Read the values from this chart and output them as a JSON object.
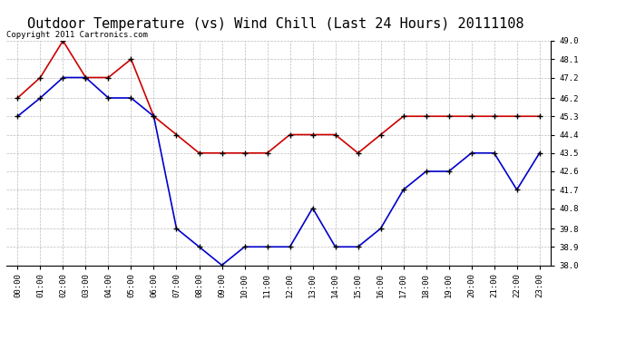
{
  "title": "Outdoor Temperature (vs) Wind Chill (Last 24 Hours) 20111108",
  "copyright_text": "Copyright 2011 Cartronics.com",
  "hours": [
    "00:00",
    "01:00",
    "02:00",
    "03:00",
    "04:00",
    "05:00",
    "06:00",
    "07:00",
    "08:00",
    "09:00",
    "10:00",
    "11:00",
    "12:00",
    "13:00",
    "14:00",
    "15:00",
    "16:00",
    "17:00",
    "18:00",
    "19:00",
    "20:00",
    "21:00",
    "22:00",
    "23:00"
  ],
  "red_line": [
    46.2,
    47.2,
    49.0,
    47.2,
    47.2,
    48.1,
    45.3,
    44.4,
    43.5,
    43.5,
    43.5,
    43.5,
    44.4,
    44.4,
    44.4,
    43.5,
    44.4,
    45.3,
    45.3,
    45.3,
    45.3,
    45.3,
    45.3,
    45.3
  ],
  "blue_line": [
    45.3,
    46.2,
    47.2,
    47.2,
    46.2,
    46.2,
    45.3,
    39.8,
    38.9,
    38.0,
    38.9,
    38.9,
    38.9,
    40.8,
    38.9,
    38.9,
    39.8,
    41.7,
    42.6,
    42.6,
    43.5,
    43.5,
    41.7,
    43.5
  ],
  "red_color": "#cc0000",
  "blue_color": "#0000cc",
  "bg_color": "#ffffff",
  "plot_bg_color": "#ffffff",
  "grid_color": "#bbbbbb",
  "ylim_min": 38.0,
  "ylim_max": 49.0,
  "yticks": [
    38.0,
    38.9,
    39.8,
    40.8,
    41.7,
    42.6,
    43.5,
    44.4,
    45.3,
    46.2,
    47.2,
    48.1,
    49.0
  ],
  "title_fontsize": 11,
  "copyright_fontsize": 6.5,
  "tick_fontsize": 6.5,
  "marker": "+",
  "marker_size": 4,
  "linewidth": 1.2
}
